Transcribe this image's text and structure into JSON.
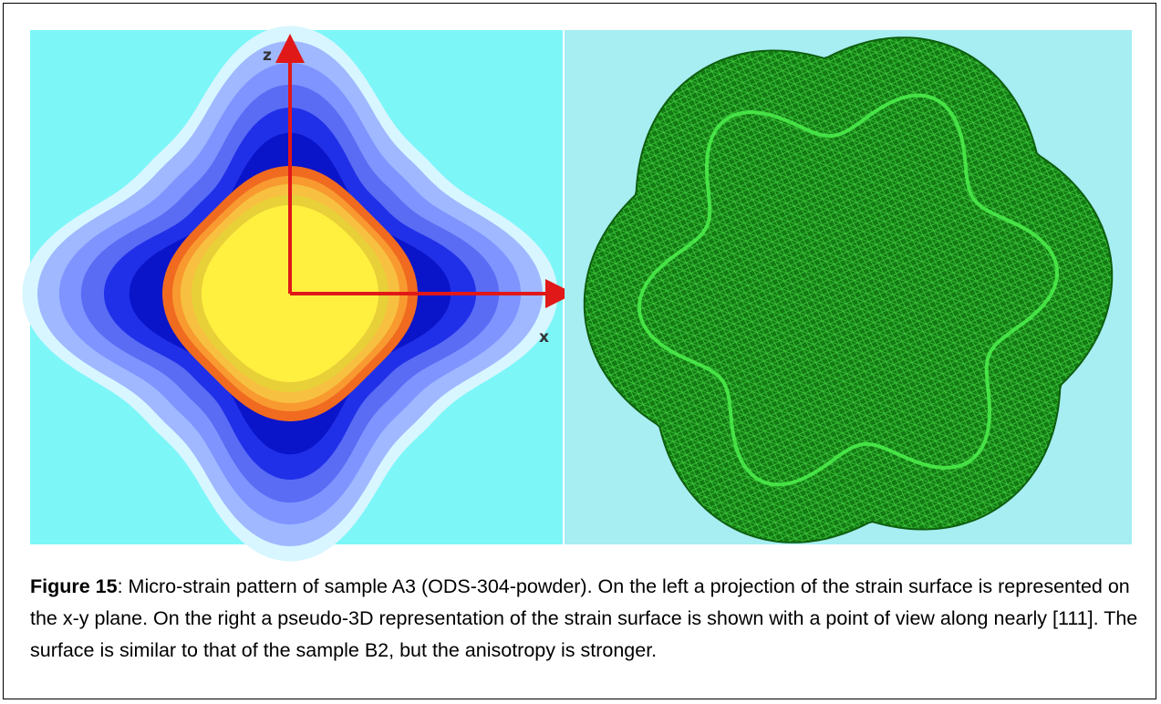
{
  "figure": {
    "left_panel": {
      "axis_labels": [
        "z",
        "x"
      ]
    }
  },
  "caption": {
    "label": "Figure 15",
    "text": ": Micro-strain pattern of sample A3 (ODS-304-powder). On the left a projection of the strain surface is represented on the x-y plane. On the right a pseudo-3D representation of the strain surface is shown with a point of view along nearly [111]. The surface is similar to that of the sample B2, but the anisotropy is stronger."
  }
}
